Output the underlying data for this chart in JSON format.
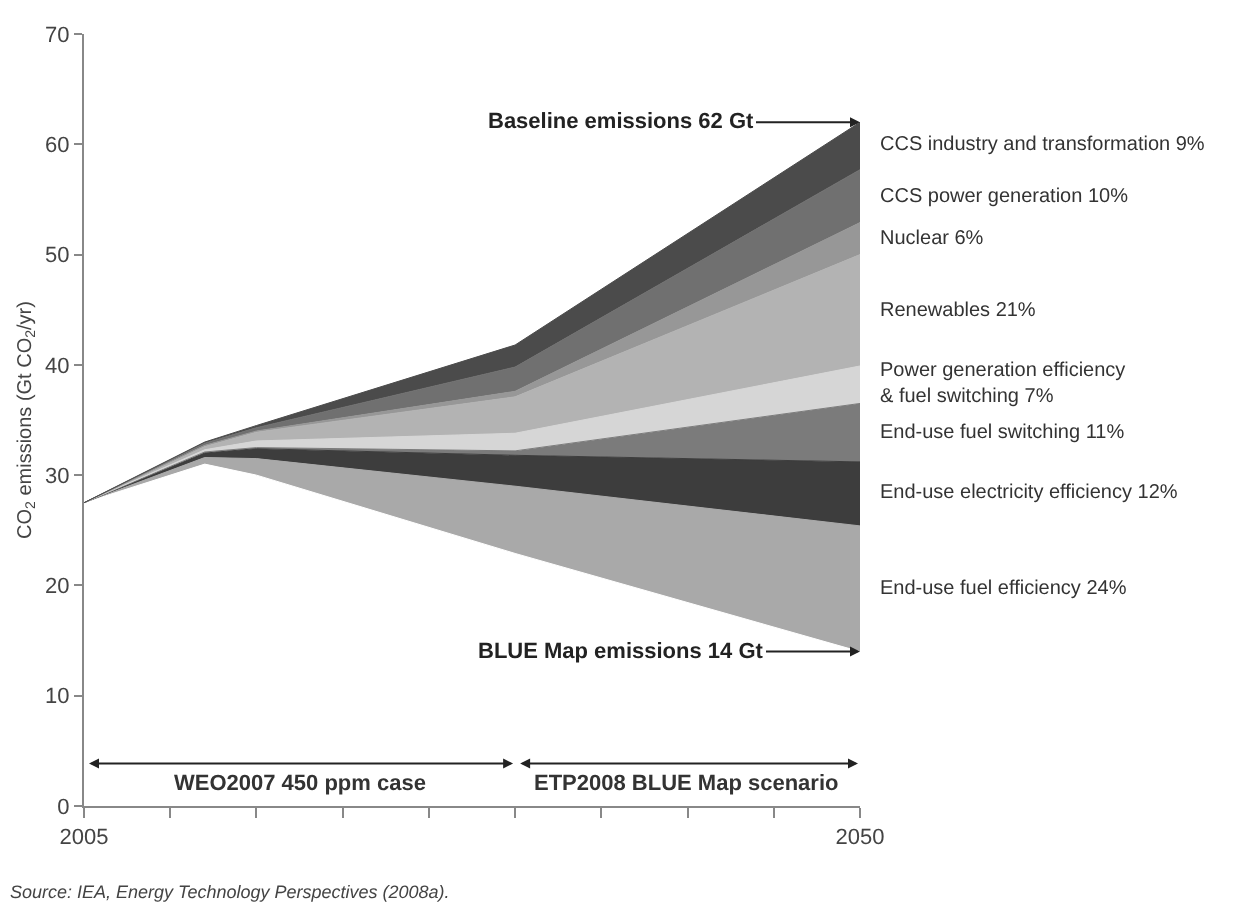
{
  "chart_data": {
    "type": "area",
    "stacked": true,
    "ylabel": "CO$_{2}$ emissions (Gt CO$_{2}$/yr)",
    "x": [
      2005,
      2012,
      2015,
      2030,
      2050
    ],
    "xlim": [
      2005,
      2050
    ],
    "xticks": [
      2005,
      {
        "value": 2010,
        "label": null
      },
      {
        "value": 2015,
        "label": null
      },
      {
        "value": 2020,
        "label": null
      },
      {
        "value": 2025,
        "label": null
      },
      {
        "value": 2030,
        "label": null
      },
      {
        "value": 2035,
        "label": null
      },
      {
        "value": 2040,
        "label": null
      },
      {
        "value": 2045,
        "label": null
      },
      2050
    ],
    "ylim": [
      0,
      70
    ],
    "yticks": [
      0,
      10,
      20,
      30,
      40,
      50,
      60,
      70
    ],
    "series": [
      {
        "color": "#ffffff",
        "values": [
          27.5,
          31,
          30,
          22.9,
          14
        ]
      },
      {
        "name": "End-use fuel efficiency 24%",
        "color": "#a9a9a9",
        "values": [
          0,
          0.6,
          1.5,
          6.1,
          11.4
        ]
      },
      {
        "name": "End-use electricity efficiency 12%",
        "color": "#3d3d3d",
        "values": [
          0,
          0.4,
          0.9,
          2.8,
          5.8
        ]
      },
      {
        "name": "End-use fuel switching 11%",
        "color": "#7b7b7b",
        "values": [
          0,
          0.1,
          0.1,
          0.4,
          5.3
        ]
      },
      {
        "name": "Power generation efficiency\n& fuel switching 7%",
        "color": "#d6d6d6",
        "values": [
          0,
          0.2,
          0.6,
          1.6,
          3.4
        ]
      },
      {
        "name": "Renewables 21%",
        "color": "#b3b3b3",
        "values": [
          0,
          0.3,
          0.8,
          3.3,
          10.1
        ]
      },
      {
        "name": "Nuclear 6%",
        "color": "#979797",
        "values": [
          0,
          0.1,
          0.1,
          0.5,
          2.9
        ]
      },
      {
        "name": "CCS power generation 10%",
        "color": "#707070",
        "values": [
          0,
          0.2,
          0.3,
          2.2,
          4.8
        ]
      },
      {
        "name": "CCS industry and transformation 9%",
        "color": "#4b4b4b",
        "values": [
          0,
          0.1,
          0.2,
          2.0,
          4.3
        ]
      }
    ],
    "annotations": [
      {
        "text": "Baseline emissions 62 Gt",
        "x": 2050,
        "y": 62
      },
      {
        "text": "BLUE Map emissions 14 Gt",
        "x": 2050,
        "y": 14
      },
      "WEO2007 450 ppm case",
      "ETP2008 BLUE Map scenario",
      "Source: IEA, Energy Technology Perspectives (2008a)."
    ]
  }
}
